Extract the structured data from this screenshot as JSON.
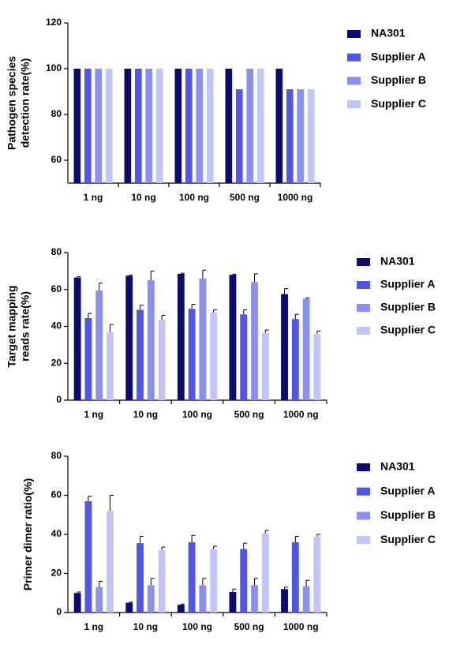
{
  "chart_data": [
    {
      "type": "bar",
      "ylabel": [
        "Pathogen species",
        "detection rate(%)"
      ],
      "categories": [
        "1 ng",
        "10 ng",
        "100 ng",
        "500 ng",
        "1000 ng"
      ],
      "ylim": [
        50,
        120
      ],
      "yticks": [
        60,
        80,
        100,
        120
      ],
      "series": [
        {
          "name": "NA301",
          "color": "#0b0c6e",
          "values": [
            100,
            100,
            100,
            100,
            100
          ]
        },
        {
          "name": "Supplier A",
          "color": "#5156e6",
          "values": [
            100,
            100,
            100,
            91,
            91
          ]
        },
        {
          "name": "Supplier B",
          "color": "#8b8ff0",
          "values": [
            100,
            100,
            100,
            100,
            91
          ]
        },
        {
          "name": "Supplier C",
          "color": "#c3c5f7",
          "values": [
            100,
            100,
            100,
            100,
            91
          ]
        }
      ]
    },
    {
      "type": "bar",
      "ylabel": [
        "Target mapping",
        "reads rate(%)"
      ],
      "categories": [
        "1 ng",
        "10 ng",
        "100 ng",
        "500 ng",
        "1000 ng"
      ],
      "ylim": [
        0,
        80
      ],
      "yticks": [
        0,
        20,
        40,
        60,
        80
      ],
      "series": [
        {
          "name": "NA301",
          "color": "#0b0c6e",
          "values": [
            66.5,
            67.5,
            68.5,
            68,
            57.5
          ],
          "errors": [
            0.5,
            0.3,
            0.3,
            0.3,
            3
          ]
        },
        {
          "name": "Supplier A",
          "color": "#5156e6",
          "values": [
            44.5,
            49,
            49.5,
            46.5,
            44
          ],
          "errors": [
            2.5,
            2.5,
            2.5,
            2.5,
            2.5
          ]
        },
        {
          "name": "Supplier B",
          "color": "#8b8ff0",
          "values": [
            59.5,
            65,
            66,
            64,
            55
          ],
          "errors": [
            4,
            5,
            4.5,
            4.5,
            0.5
          ]
        },
        {
          "name": "Supplier C",
          "color": "#c3c5f7",
          "values": [
            37,
            43.5,
            47.5,
            36.5,
            36
          ],
          "errors": [
            4,
            2.5,
            1.5,
            1.5,
            1.5
          ]
        }
      ]
    },
    {
      "type": "bar",
      "ylabel": [
        "Primer dimer ratio(%)"
      ],
      "categories": [
        "1 ng",
        "10 ng",
        "100 ng",
        "500 ng",
        "1000 ng"
      ],
      "ylim": [
        0,
        80
      ],
      "yticks": [
        0,
        20,
        40,
        60,
        80
      ],
      "series": [
        {
          "name": "NA301",
          "color": "#0b0c6e",
          "values": [
            10,
            5,
            4,
            10.5,
            12
          ],
          "errors": [
            0.5,
            0.3,
            0.3,
            1.5,
            1
          ]
        },
        {
          "name": "Supplier A",
          "color": "#5156e6",
          "values": [
            57,
            35.5,
            36,
            32.5,
            36
          ],
          "errors": [
            2.5,
            3.5,
            3.5,
            3,
            3
          ]
        },
        {
          "name": "Supplier B",
          "color": "#8b8ff0",
          "values": [
            13,
            14,
            14,
            14,
            13.5
          ],
          "errors": [
            3,
            3.5,
            3.5,
            3.5,
            3
          ]
        },
        {
          "name": "Supplier C",
          "color": "#c3c5f7",
          "values": [
            52,
            32,
            32.5,
            40.5,
            39
          ],
          "errors": [
            8,
            1.5,
            1.5,
            1.5,
            1
          ]
        }
      ]
    }
  ]
}
